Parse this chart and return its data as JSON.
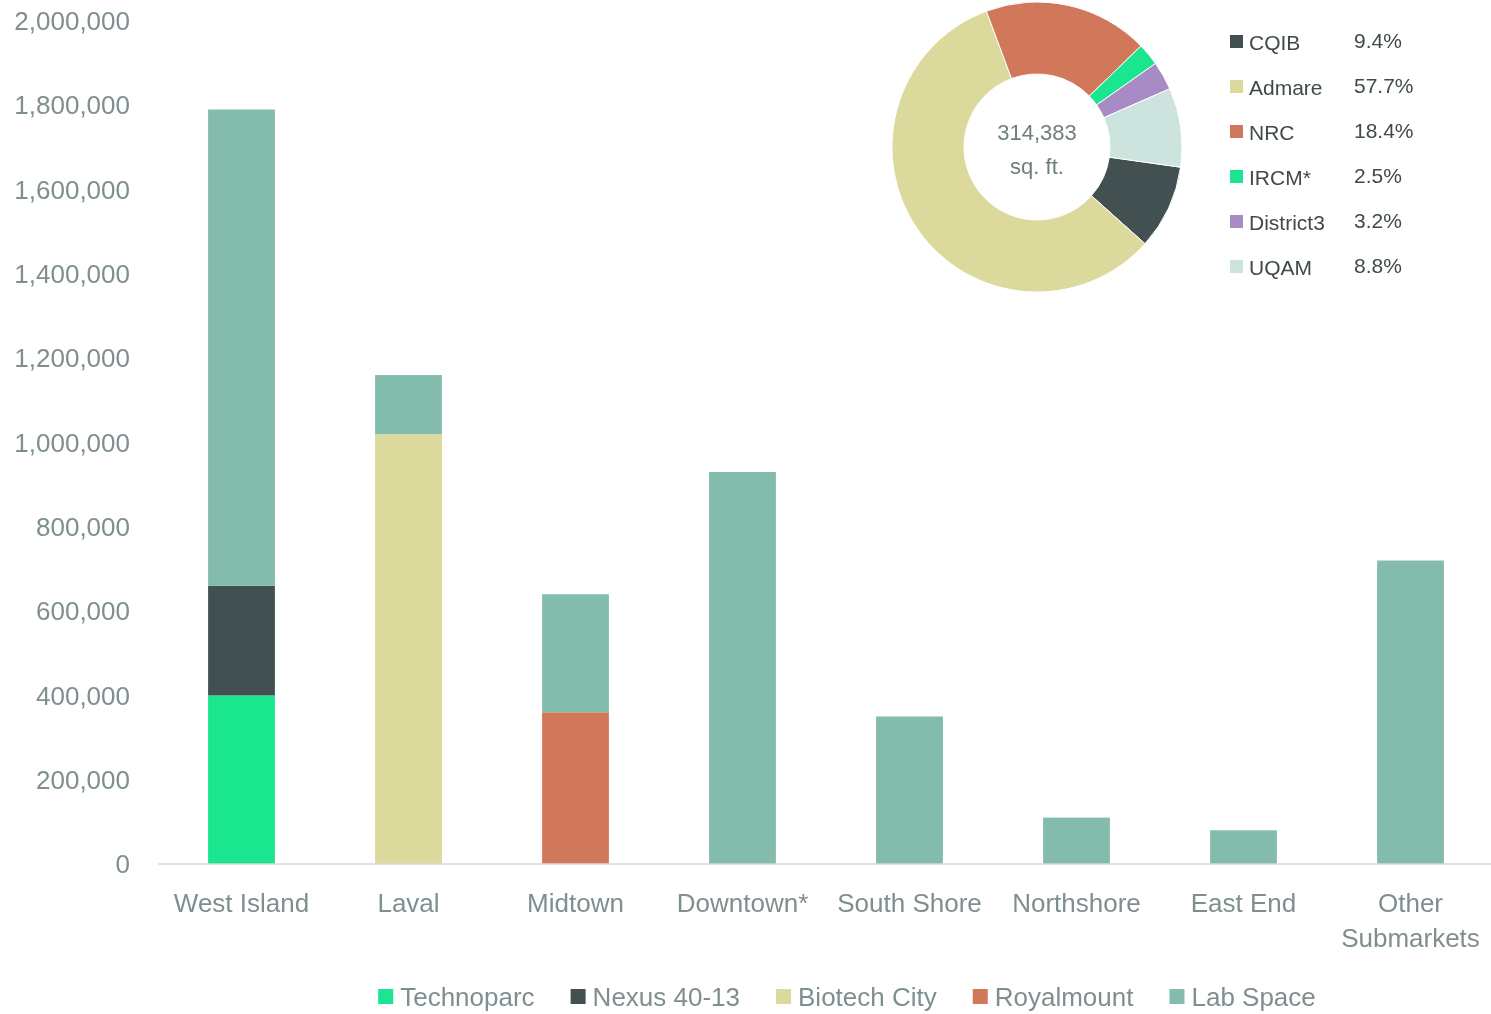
{
  "chart_data": [
    {
      "type": "bar",
      "stacked": true,
      "legend": "bottom",
      "categories": [
        "West Island",
        "Laval",
        "Midtown",
        "Downtown*",
        "South Shore",
        "Northshore",
        "East End",
        "Other Submarkets"
      ],
      "ylim": [
        0,
        2000000
      ],
      "yticks": [
        {
          "value": 0,
          "label": "0"
        },
        {
          "value": 200000,
          "label": "200,000"
        },
        {
          "value": 400000,
          "label": "400,000"
        },
        {
          "value": 600000,
          "label": "600,000"
        },
        {
          "value": 800000,
          "label": "800,000"
        },
        {
          "value": 1000000,
          "label": "1,000,000"
        },
        {
          "value": 1200000,
          "label": "1,200,000"
        },
        {
          "value": 1400000,
          "label": "1,400,000"
        },
        {
          "value": 1600000,
          "label": "1,600,000"
        },
        {
          "value": 1800000,
          "label": "1,800,000"
        },
        {
          "value": 2000000,
          "label": "2,000,000"
        }
      ],
      "series": [
        {
          "name": "Technoparc",
          "color": "#19e68f",
          "values": [
            400000,
            null,
            null,
            null,
            null,
            null,
            null,
            null
          ]
        },
        {
          "name": "Nexus 40-13",
          "color": "#435052",
          "values": [
            260000,
            null,
            null,
            null,
            null,
            null,
            null,
            null
          ]
        },
        {
          "name": "Biotech City",
          "color": "#dbd99b",
          "values": [
            null,
            1020000,
            null,
            null,
            null,
            null,
            null,
            null
          ]
        },
        {
          "name": "Royalmount",
          "color": "#d2785a",
          "values": [
            null,
            null,
            360000,
            null,
            null,
            null,
            null,
            null
          ]
        },
        {
          "name": "Lab Space",
          "color": "#83bbad",
          "values": [
            1130000,
            140000,
            280000,
            930000,
            350000,
            110000,
            80000,
            720000
          ]
        }
      ]
    },
    {
      "type": "donut",
      "legend": "right",
      "categories": [
        "CQIB",
        "Admare",
        "NRC",
        "IRCM*",
        "District3",
        "UQAM"
      ],
      "values": [
        9.4,
        57.7,
        18.4,
        2.5,
        3.2,
        8.8
      ],
      "value_labels": [
        "9.4%",
        "57.7%",
        "18.4%",
        "2.5%",
        "3.2%",
        "8.8%"
      ],
      "colors": [
        "#435052",
        "#dbd99b",
        "#d2785a",
        "#19e68f",
        "#a88bc4",
        "#cde3dd"
      ],
      "annotations": [
        "314,383 sq. ft."
      ]
    }
  ]
}
